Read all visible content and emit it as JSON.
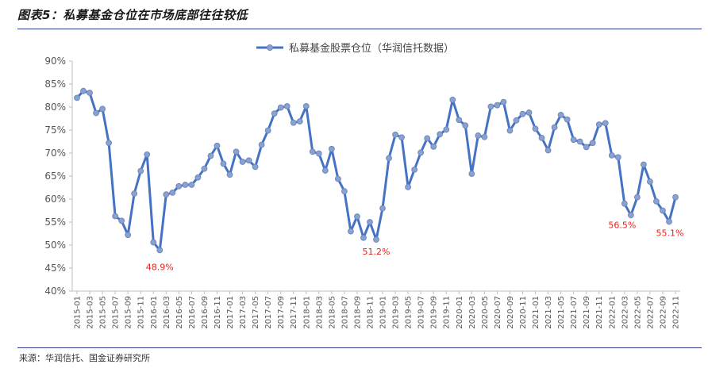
{
  "title": "图表5：私募基金仓位在市场底部往往较低",
  "source": "来源：华润信托、国金证券研究所",
  "colors": {
    "line": "#4472c4",
    "marker": "#8aa2cf",
    "annotation": "#e8211d",
    "rule": "#2b3a8c"
  },
  "chart_data": {
    "type": "line",
    "legend_position": "top-center",
    "grid": false,
    "ylim": [
      0.4,
      0.9
    ],
    "y_ticks": [
      "40%",
      "45%",
      "50%",
      "55%",
      "60%",
      "65%",
      "70%",
      "75%",
      "80%",
      "85%",
      "90%"
    ],
    "x_start": "2015-01",
    "x_end": "2022-11",
    "x_tick_step_months": 2,
    "x_tick_labels": [
      "2015-01",
      "2015-03",
      "2015-05",
      "2015-07",
      "2015-09",
      "2015-11",
      "2016-01",
      "2016-03",
      "2016-05",
      "2016-07",
      "2016-09",
      "2016-11",
      "2017-01",
      "2017-03",
      "2017-05",
      "2017-07",
      "2017-09",
      "2017-11",
      "2018-01",
      "2018-03",
      "2018-05",
      "2018-07",
      "2018-09",
      "2018-11",
      "2019-01",
      "2019-03",
      "2019-05",
      "2019-07",
      "2019-09",
      "2019-11",
      "2020-01",
      "2020-03",
      "2020-05",
      "2020-07",
      "2020-09",
      "2020-11",
      "2021-01",
      "2021-03",
      "2021-05",
      "2021-07",
      "2021-09",
      "2021-11",
      "2022-01",
      "2022-03",
      "2022-05",
      "2022-07",
      "2022-09",
      "2022-11"
    ],
    "series": [
      {
        "name": "私募基金股票仓位（华润信托数据）",
        "values": [
          0.82,
          0.835,
          0.831,
          0.787,
          0.796,
          0.722,
          0.563,
          0.553,
          0.522,
          0.612,
          0.661,
          0.697,
          0.506,
          0.489,
          0.61,
          0.614,
          0.628,
          0.631,
          0.631,
          0.647,
          0.666,
          0.694,
          0.716,
          0.677,
          0.653,
          0.703,
          0.681,
          0.684,
          0.67,
          0.718,
          0.749,
          0.786,
          0.799,
          0.802,
          0.766,
          0.769,
          0.802,
          0.703,
          0.699,
          0.662,
          0.709,
          0.644,
          0.617,
          0.53,
          0.562,
          0.516,
          0.55,
          0.512,
          0.58,
          0.689,
          0.74,
          0.734,
          0.626,
          0.664,
          0.701,
          0.732,
          0.714,
          0.741,
          0.751,
          0.816,
          0.772,
          0.76,
          0.655,
          0.738,
          0.735,
          0.801,
          0.804,
          0.811,
          0.749,
          0.771,
          0.785,
          0.788,
          0.753,
          0.733,
          0.706,
          0.756,
          0.783,
          0.773,
          0.729,
          0.725,
          0.713,
          0.722,
          0.762,
          0.765,
          0.695,
          0.691,
          0.59,
          0.565,
          0.604,
          0.675,
          0.638,
          0.595,
          0.575,
          0.551,
          0.604
        ]
      }
    ],
    "annotations": [
      {
        "label": "48.9%",
        "x": "2016-02",
        "y": 0.489
      },
      {
        "label": "51.2%",
        "x": "2018-12",
        "y": 0.512
      },
      {
        "label": "56.5%",
        "x": "2022-04",
        "y": 0.565
      },
      {
        "label": "55.1%",
        "x": "2022-10",
        "y": 0.551
      }
    ]
  }
}
